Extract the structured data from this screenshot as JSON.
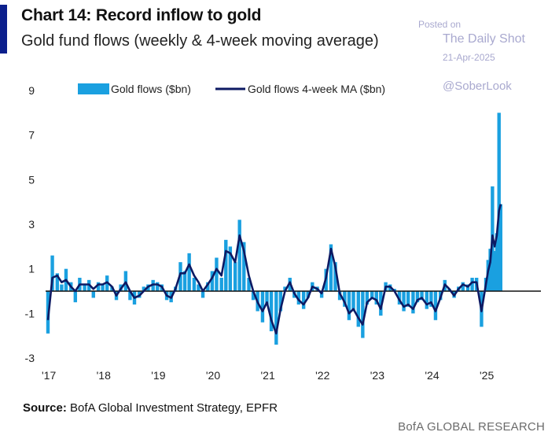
{
  "header": {
    "title": "Chart 14: Record inflow to gold",
    "subtitle": "Gold fund flows (weekly & 4-week moving average)"
  },
  "watermark": {
    "posted_on": "Posted on",
    "site": "The Daily Shot",
    "date": "21-Apr-2025",
    "handle": "@SoberLook"
  },
  "footer": {
    "source_label": "Source:",
    "source_text": "BofA Global Investment Strategy, EPFR",
    "brand": "BofA GLOBAL RESEARCH"
  },
  "colors": {
    "weekly_bars": "#1aa0e0",
    "moving_average": "#0d1a63",
    "accent": "#0b1f8c"
  },
  "chart_data": {
    "type": "bar",
    "title": "Chart 14: Record inflow to gold",
    "subtitle": "Gold fund flows (weekly & 4-week moving average)",
    "xlabel": "",
    "ylabel": "",
    "ylim": [
      -3,
      9
    ],
    "yticks": [
      9,
      7,
      5,
      3,
      1,
      -1,
      -3
    ],
    "xlim": [
      2017.0,
      2026.0
    ],
    "xticks": [
      {
        "x": 2017,
        "label": "'17"
      },
      {
        "x": 2018,
        "label": "'18"
      },
      {
        "x": 2019,
        "label": "'19"
      },
      {
        "x": 2020,
        "label": "'20"
      },
      {
        "x": 2021,
        "label": "'21"
      },
      {
        "x": 2022,
        "label": "'22"
      },
      {
        "x": 2023,
        "label": "'23"
      },
      {
        "x": 2024,
        "label": "'24"
      },
      {
        "x": 2025,
        "label": "'25"
      }
    ],
    "grid": false,
    "zero_line": true,
    "legend": {
      "placement": "top",
      "entries": [
        {
          "name": "Gold flows ($bn)",
          "kind": "bar"
        },
        {
          "name": "Gold flows 4-week MA ($bn)",
          "kind": "line"
        }
      ]
    },
    "series": [
      {
        "name": "Gold flows ($bn)",
        "type": "bar",
        "points": [
          [
            2017.0,
            -1.9
          ],
          [
            2017.08,
            1.6
          ],
          [
            2017.17,
            0.8
          ],
          [
            2017.25,
            0.3
          ],
          [
            2017.33,
            1.0
          ],
          [
            2017.42,
            0.4
          ],
          [
            2017.5,
            -0.5
          ],
          [
            2017.58,
            0.6
          ],
          [
            2017.67,
            0.3
          ],
          [
            2017.75,
            0.5
          ],
          [
            2017.83,
            -0.3
          ],
          [
            2017.92,
            0.4
          ],
          [
            2018.0,
            0.3
          ],
          [
            2018.08,
            0.7
          ],
          [
            2018.17,
            0.2
          ],
          [
            2018.25,
            -0.4
          ],
          [
            2018.33,
            0.3
          ],
          [
            2018.42,
            0.9
          ],
          [
            2018.5,
            -0.4
          ],
          [
            2018.58,
            -0.6
          ],
          [
            2018.67,
            -0.3
          ],
          [
            2018.75,
            0.2
          ],
          [
            2018.83,
            0.3
          ],
          [
            2018.92,
            0.5
          ],
          [
            2019.0,
            0.4
          ],
          [
            2019.08,
            0.3
          ],
          [
            2019.17,
            -0.4
          ],
          [
            2019.25,
            -0.5
          ],
          [
            2019.33,
            0.2
          ],
          [
            2019.42,
            1.3
          ],
          [
            2019.5,
            0.9
          ],
          [
            2019.58,
            1.7
          ],
          [
            2019.67,
            0.6
          ],
          [
            2019.75,
            0.3
          ],
          [
            2019.83,
            -0.3
          ],
          [
            2019.92,
            0.4
          ],
          [
            2020.0,
            0.9
          ],
          [
            2020.08,
            1.5
          ],
          [
            2020.17,
            0.6
          ],
          [
            2020.25,
            2.3
          ],
          [
            2020.33,
            2.0
          ],
          [
            2020.42,
            1.3
          ],
          [
            2020.5,
            3.2
          ],
          [
            2020.58,
            2.2
          ],
          [
            2020.67,
            0.6
          ],
          [
            2020.75,
            -0.4
          ],
          [
            2020.83,
            -0.9
          ],
          [
            2020.92,
            -1.4
          ],
          [
            2021.0,
            -0.6
          ],
          [
            2021.08,
            -1.8
          ],
          [
            2021.17,
            -2.4
          ],
          [
            2021.25,
            -0.9
          ],
          [
            2021.33,
            0.2
          ],
          [
            2021.42,
            0.6
          ],
          [
            2021.5,
            -0.3
          ],
          [
            2021.58,
            -0.6
          ],
          [
            2021.67,
            -0.8
          ],
          [
            2021.75,
            -0.3
          ],
          [
            2021.83,
            0.4
          ],
          [
            2021.92,
            0.2
          ],
          [
            2022.0,
            -0.3
          ],
          [
            2022.08,
            1.0
          ],
          [
            2022.17,
            2.1
          ],
          [
            2022.25,
            1.3
          ],
          [
            2022.33,
            -0.4
          ],
          [
            2022.42,
            -0.7
          ],
          [
            2022.5,
            -1.3
          ],
          [
            2022.58,
            -0.9
          ],
          [
            2022.67,
            -1.6
          ],
          [
            2022.75,
            -2.1
          ],
          [
            2022.83,
            -0.6
          ],
          [
            2022.92,
            -0.3
          ],
          [
            2023.0,
            -0.6
          ],
          [
            2023.08,
            -1.1
          ],
          [
            2023.17,
            0.4
          ],
          [
            2023.25,
            0.3
          ],
          [
            2023.33,
            0.1
          ],
          [
            2023.42,
            -0.6
          ],
          [
            2023.5,
            -0.9
          ],
          [
            2023.58,
            -0.7
          ],
          [
            2023.67,
            -1.0
          ],
          [
            2023.75,
            -0.5
          ],
          [
            2023.83,
            -0.4
          ],
          [
            2023.92,
            -0.8
          ],
          [
            2024.0,
            -0.7
          ],
          [
            2024.08,
            -1.3
          ],
          [
            2024.17,
            -0.4
          ],
          [
            2024.25,
            0.5
          ],
          [
            2024.33,
            0.1
          ],
          [
            2024.42,
            -0.3
          ],
          [
            2024.5,
            0.2
          ],
          [
            2024.58,
            0.4
          ],
          [
            2024.67,
            0.3
          ],
          [
            2024.75,
            0.6
          ],
          [
            2024.83,
            0.6
          ],
          [
            2024.92,
            -1.6
          ],
          [
            2025.0,
            0.6
          ],
          [
            2025.04,
            1.4
          ],
          [
            2025.08,
            1.9
          ],
          [
            2025.12,
            4.7
          ],
          [
            2025.16,
            1.8
          ],
          [
            2025.2,
            2.6
          ],
          [
            2025.24,
            8.0
          ],
          [
            2025.27,
            3.9
          ]
        ]
      },
      {
        "name": "Gold flows 4-week MA ($bn)",
        "type": "line",
        "points": [
          [
            2017.0,
            -1.3
          ],
          [
            2017.08,
            0.6
          ],
          [
            2017.17,
            0.7
          ],
          [
            2017.25,
            0.4
          ],
          [
            2017.33,
            0.5
          ],
          [
            2017.42,
            0.2
          ],
          [
            2017.5,
            0.0
          ],
          [
            2017.58,
            0.3
          ],
          [
            2017.67,
            0.3
          ],
          [
            2017.75,
            0.3
          ],
          [
            2017.83,
            0.1
          ],
          [
            2017.92,
            0.3
          ],
          [
            2018.0,
            0.3
          ],
          [
            2018.08,
            0.4
          ],
          [
            2018.17,
            0.2
          ],
          [
            2018.25,
            -0.2
          ],
          [
            2018.33,
            0.1
          ],
          [
            2018.42,
            0.4
          ],
          [
            2018.5,
            0.0
          ],
          [
            2018.58,
            -0.3
          ],
          [
            2018.67,
            -0.2
          ],
          [
            2018.75,
            0.0
          ],
          [
            2018.83,
            0.2
          ],
          [
            2018.92,
            0.3
          ],
          [
            2019.0,
            0.3
          ],
          [
            2019.08,
            0.2
          ],
          [
            2019.17,
            -0.2
          ],
          [
            2019.25,
            -0.3
          ],
          [
            2019.33,
            0.1
          ],
          [
            2019.42,
            0.8
          ],
          [
            2019.5,
            0.8
          ],
          [
            2019.58,
            1.2
          ],
          [
            2019.67,
            0.7
          ],
          [
            2019.75,
            0.4
          ],
          [
            2019.83,
            0.0
          ],
          [
            2019.92,
            0.3
          ],
          [
            2020.0,
            0.6
          ],
          [
            2020.08,
            1.0
          ],
          [
            2020.17,
            0.7
          ],
          [
            2020.25,
            1.8
          ],
          [
            2020.33,
            1.7
          ],
          [
            2020.42,
            1.3
          ],
          [
            2020.5,
            2.5
          ],
          [
            2020.58,
            1.8
          ],
          [
            2020.67,
            0.7
          ],
          [
            2020.75,
            0.0
          ],
          [
            2020.83,
            -0.5
          ],
          [
            2020.92,
            -0.9
          ],
          [
            2021.0,
            -0.5
          ],
          [
            2021.08,
            -1.3
          ],
          [
            2021.17,
            -1.9
          ],
          [
            2021.25,
            -0.8
          ],
          [
            2021.33,
            0.0
          ],
          [
            2021.42,
            0.4
          ],
          [
            2021.5,
            -0.1
          ],
          [
            2021.58,
            -0.4
          ],
          [
            2021.67,
            -0.6
          ],
          [
            2021.75,
            -0.3
          ],
          [
            2021.83,
            0.2
          ],
          [
            2021.92,
            0.1
          ],
          [
            2022.0,
            -0.1
          ],
          [
            2022.08,
            0.6
          ],
          [
            2022.17,
            1.9
          ],
          [
            2022.25,
            1.1
          ],
          [
            2022.33,
            -0.1
          ],
          [
            2022.42,
            -0.5
          ],
          [
            2022.5,
            -1.0
          ],
          [
            2022.58,
            -0.8
          ],
          [
            2022.67,
            -1.2
          ],
          [
            2022.75,
            -1.5
          ],
          [
            2022.83,
            -0.5
          ],
          [
            2022.92,
            -0.3
          ],
          [
            2023.0,
            -0.4
          ],
          [
            2023.08,
            -0.8
          ],
          [
            2023.17,
            0.2
          ],
          [
            2023.25,
            0.2
          ],
          [
            2023.33,
            0.0
          ],
          [
            2023.42,
            -0.4
          ],
          [
            2023.5,
            -0.7
          ],
          [
            2023.58,
            -0.6
          ],
          [
            2023.67,
            -0.8
          ],
          [
            2023.75,
            -0.4
          ],
          [
            2023.83,
            -0.3
          ],
          [
            2023.92,
            -0.6
          ],
          [
            2024.0,
            -0.5
          ],
          [
            2024.08,
            -0.9
          ],
          [
            2024.17,
            -0.3
          ],
          [
            2024.25,
            0.3
          ],
          [
            2024.33,
            0.1
          ],
          [
            2024.42,
            -0.2
          ],
          [
            2024.5,
            0.1
          ],
          [
            2024.58,
            0.3
          ],
          [
            2024.67,
            0.2
          ],
          [
            2024.75,
            0.4
          ],
          [
            2024.83,
            0.4
          ],
          [
            2024.92,
            -0.9
          ],
          [
            2025.0,
            0.3
          ],
          [
            2025.04,
            0.9
          ],
          [
            2025.08,
            1.3
          ],
          [
            2025.12,
            2.5
          ],
          [
            2025.16,
            2.0
          ],
          [
            2025.2,
            2.5
          ],
          [
            2025.24,
            3.6
          ],
          [
            2025.27,
            3.9
          ]
        ]
      }
    ]
  }
}
